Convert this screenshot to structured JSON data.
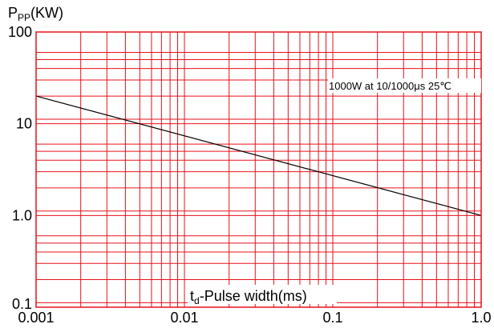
{
  "chart_data": {
    "type": "line",
    "y_axis": {
      "base": "P",
      "sub": "PP",
      "rest": "(KW)"
    },
    "x_axis": {
      "base": "t",
      "sub": "d",
      "rest": "-Pulse width(ms)"
    },
    "x_scale": "log",
    "y_scale": "log",
    "xlim": [
      0.001,
      1.0
    ],
    "ylim": [
      0.1,
      100
    ],
    "x_ticks": [
      {
        "value": 0.001,
        "label": "0.001"
      },
      {
        "value": 0.01,
        "label": "0.01"
      },
      {
        "value": 0.1,
        "label": "0.1"
      },
      {
        "value": 1.0,
        "label": "1.0"
      }
    ],
    "y_ticks": [
      {
        "value": 100,
        "label": "100"
      },
      {
        "value": 10,
        "label": "10"
      },
      {
        "value": 1.0,
        "label": "1.0"
      },
      {
        "value": 0.1,
        "label": "0.1"
      }
    ],
    "grid": true,
    "grid_color": "#e8101a",
    "line_color": "#000000",
    "series": [
      {
        "x": [
          0.001,
          1.0
        ],
        "y": [
          20,
          1.0
        ]
      }
    ],
    "annotation": "1000W at 10/1000μs 25℃"
  }
}
